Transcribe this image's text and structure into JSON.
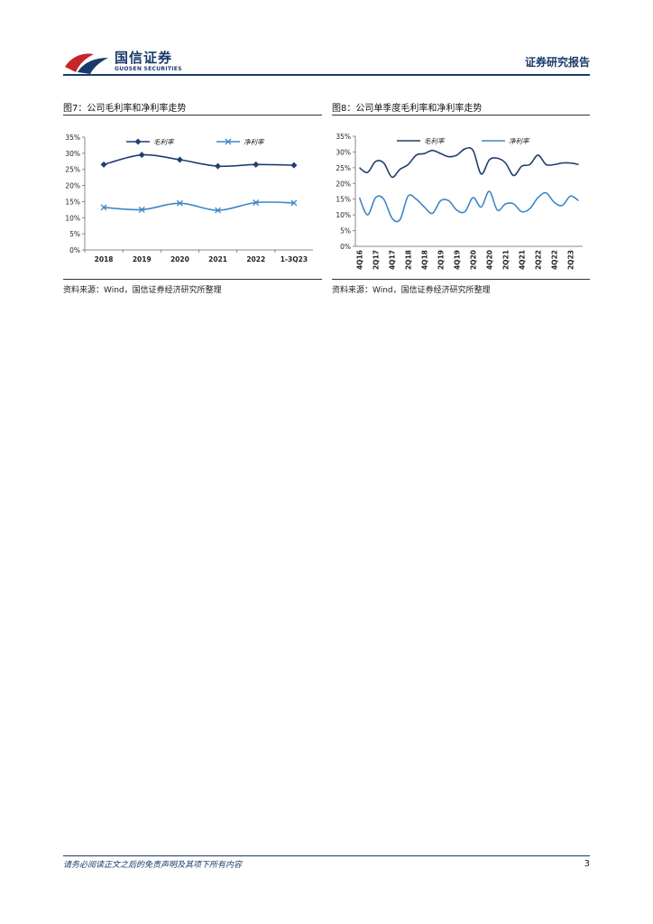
{
  "header": {
    "brand_cn": "国信证券",
    "brand_en": "GUOSEN SECURITIES",
    "report_type": "证券研究报告"
  },
  "figures": [
    {
      "title": "图7：公司毛利率和净利率走势",
      "source": "资料来源：Wind，国信证券经济研究所整理"
    },
    {
      "title": "图8：公司单季度毛利率和净利率走势",
      "source": "资料来源：Wind，国信证券经济研究所整理"
    }
  ],
  "footer": {
    "disclaimer": "请务必阅读正文之后的免责声明及其项下所有内容",
    "page_number": "3"
  },
  "colors": {
    "navy": "#1a3a6b",
    "gross_annual": "#1f3f6e",
    "net_annual": "#3d86c6",
    "gross_quarterly": "#1f3f6e",
    "net_quarterly": "#3d86c6"
  },
  "chart_data": [
    {
      "type": "line",
      "categories": [
        "2018",
        "2019",
        "2020",
        "2021",
        "2022",
        "1-3Q23"
      ],
      "series": [
        {
          "name": "毛利率",
          "marker": "diamond",
          "values": [
            26.5,
            29.5,
            28.0,
            26.0,
            26.5,
            26.3
          ]
        },
        {
          "name": "净利率",
          "marker": "x",
          "values": [
            13.2,
            12.5,
            14.5,
            12.3,
            14.7,
            14.6
          ]
        }
      ],
      "y_ticks": [
        "0%",
        "5%",
        "10%",
        "15%",
        "20%",
        "25%",
        "30%",
        "35%"
      ],
      "ylim": [
        0,
        35
      ],
      "legend": "top",
      "grid": false
    },
    {
      "type": "line",
      "categories": [
        "4Q16",
        "1Q17",
        "2Q17",
        "3Q17",
        "4Q17",
        "1Q18",
        "2Q18",
        "3Q18",
        "4Q18",
        "1Q19",
        "2Q19",
        "3Q19",
        "4Q19",
        "1Q20",
        "2Q20",
        "3Q20",
        "4Q20",
        "1Q21",
        "2Q21",
        "3Q21",
        "4Q21",
        "1Q22",
        "2Q22",
        "3Q22",
        "4Q22",
        "1Q23",
        "2Q23",
        "3Q23"
      ],
      "tick_labels": [
        "4Q16",
        "2Q17",
        "4Q17",
        "2Q18",
        "4Q18",
        "2Q19",
        "4Q19",
        "2Q20",
        "4Q20",
        "2Q21",
        "4Q21",
        "2Q22",
        "4Q22",
        "2Q23"
      ],
      "series": [
        {
          "name": "毛利率",
          "values": [
            25.0,
            23.5,
            27.0,
            26.5,
            22.0,
            24.5,
            26.0,
            29.0,
            29.5,
            30.5,
            29.5,
            28.5,
            29.0,
            31.0,
            30.5,
            23.0,
            27.5,
            28.0,
            26.5,
            22.5,
            25.5,
            26.0,
            29.0,
            26.0,
            26.0,
            26.5,
            26.5,
            26.0
          ]
        },
        {
          "name": "净利率",
          "values": [
            15.5,
            10.0,
            15.5,
            15.0,
            9.0,
            8.5,
            16.0,
            15.0,
            12.5,
            10.5,
            14.5,
            14.5,
            11.5,
            11.0,
            15.5,
            12.5,
            17.5,
            11.5,
            13.5,
            13.5,
            11.0,
            12.0,
            15.5,
            17.0,
            14.0,
            13.0,
            16.0,
            14.5
          ]
        }
      ],
      "y_ticks": [
        "0%",
        "5%",
        "10%",
        "15%",
        "20%",
        "25%",
        "30%",
        "35%"
      ],
      "ylim": [
        0,
        35
      ],
      "legend": "top",
      "grid": false
    }
  ]
}
